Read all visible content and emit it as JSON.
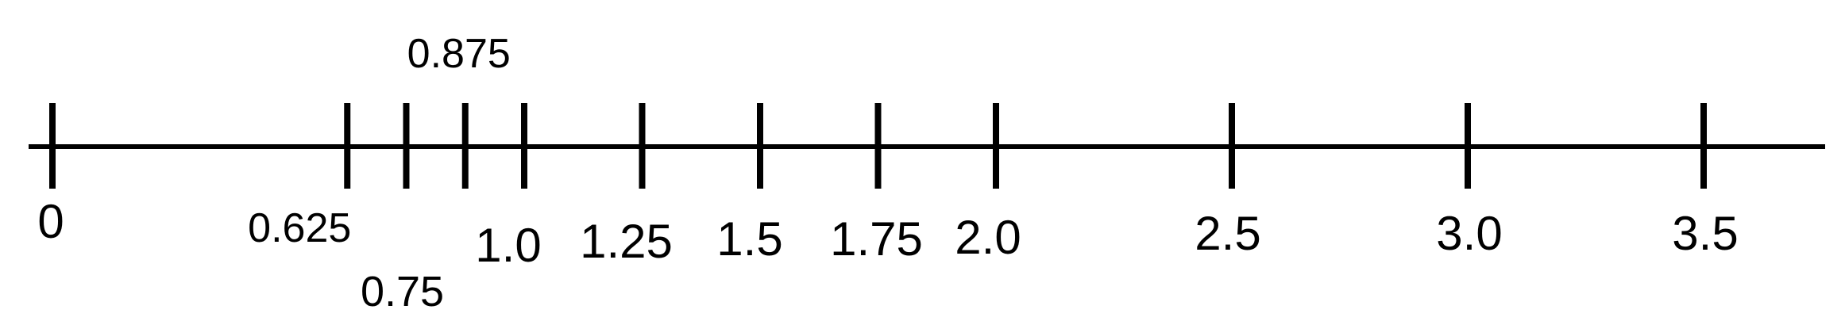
{
  "number_line": {
    "min": 0,
    "max": 3.5,
    "line_color": "#000000",
    "ticks": [
      {
        "value": 0,
        "label": "0"
      },
      {
        "value": 0.625,
        "label": "0.625"
      },
      {
        "value": 0.75,
        "label": "0.75"
      },
      {
        "value": 0.875,
        "label": "0.875"
      },
      {
        "value": 1.0,
        "label": "1.0"
      },
      {
        "value": 1.25,
        "label": "1.25"
      },
      {
        "value": 1.5,
        "label": "1.5"
      },
      {
        "value": 1.75,
        "label": "1.75"
      },
      {
        "value": 2.0,
        "label": "2.0"
      },
      {
        "value": 2.5,
        "label": "2.5"
      },
      {
        "value": 3.0,
        "label": "3.0"
      },
      {
        "value": 3.5,
        "label": "3.5"
      }
    ]
  }
}
